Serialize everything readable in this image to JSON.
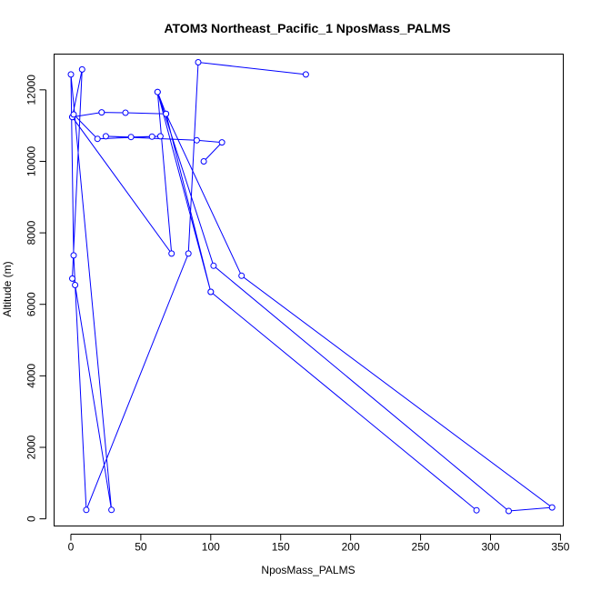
{
  "chart_data": {
    "type": "line",
    "title": "ATOM3 Northeast_Pacific_1 NposMass_PALMS",
    "xlabel": "NposMass_PALMS",
    "ylabel": "Altitude (m)",
    "xlim": [
      -12,
      352
    ],
    "ylim": [
      -200,
      13000
    ],
    "xticks": [
      0,
      50,
      100,
      150,
      200,
      250,
      300,
      350
    ],
    "yticks": [
      0,
      2000,
      4000,
      6000,
      8000,
      10000,
      12000
    ],
    "series_color": "#0000ff",
    "grid": false,
    "legend": "none",
    "points": [
      {
        "x": 168,
        "y": 12430
      },
      {
        "x": 91,
        "y": 12770
      },
      {
        "x": 84,
        "y": 7420
      },
      {
        "x": 11,
        "y": 250
      },
      {
        "x": 2,
        "y": 7370
      },
      {
        "x": 0,
        "y": 12430
      },
      {
        "x": 29,
        "y": 250
      },
      {
        "x": 3,
        "y": 6540
      },
      {
        "x": 1,
        "y": 6720
      },
      {
        "x": 8,
        "y": 12570
      },
      {
        "x": 1,
        "y": 11240
      },
      {
        "x": 72,
        "y": 7420
      },
      {
        "x": 62,
        "y": 11940
      },
      {
        "x": 102,
        "y": 7080
      },
      {
        "x": 313,
        "y": 220
      },
      {
        "x": 344,
        "y": 320
      },
      {
        "x": 122,
        "y": 6800
      },
      {
        "x": 68,
        "y": 11330
      },
      {
        "x": 100,
        "y": 6350
      },
      {
        "x": 290,
        "y": 240
      },
      {
        "x": 100,
        "y": 6350
      },
      {
        "x": 62,
        "y": 11940
      },
      {
        "x": 68,
        "y": 11330
      },
      {
        "x": 39,
        "y": 11360
      },
      {
        "x": 22,
        "y": 11370
      },
      {
        "x": 1,
        "y": 11240
      },
      {
        "x": 2,
        "y": 11310
      },
      {
        "x": 19,
        "y": 10630
      },
      {
        "x": 58,
        "y": 10690
      },
      {
        "x": 64,
        "y": 10700
      },
      {
        "x": 43,
        "y": 10680
      },
      {
        "x": 25,
        "y": 10700
      },
      {
        "x": 90,
        "y": 10590
      },
      {
        "x": 108,
        "y": 10530
      },
      {
        "x": 95,
        "y": 10000
      }
    ]
  }
}
